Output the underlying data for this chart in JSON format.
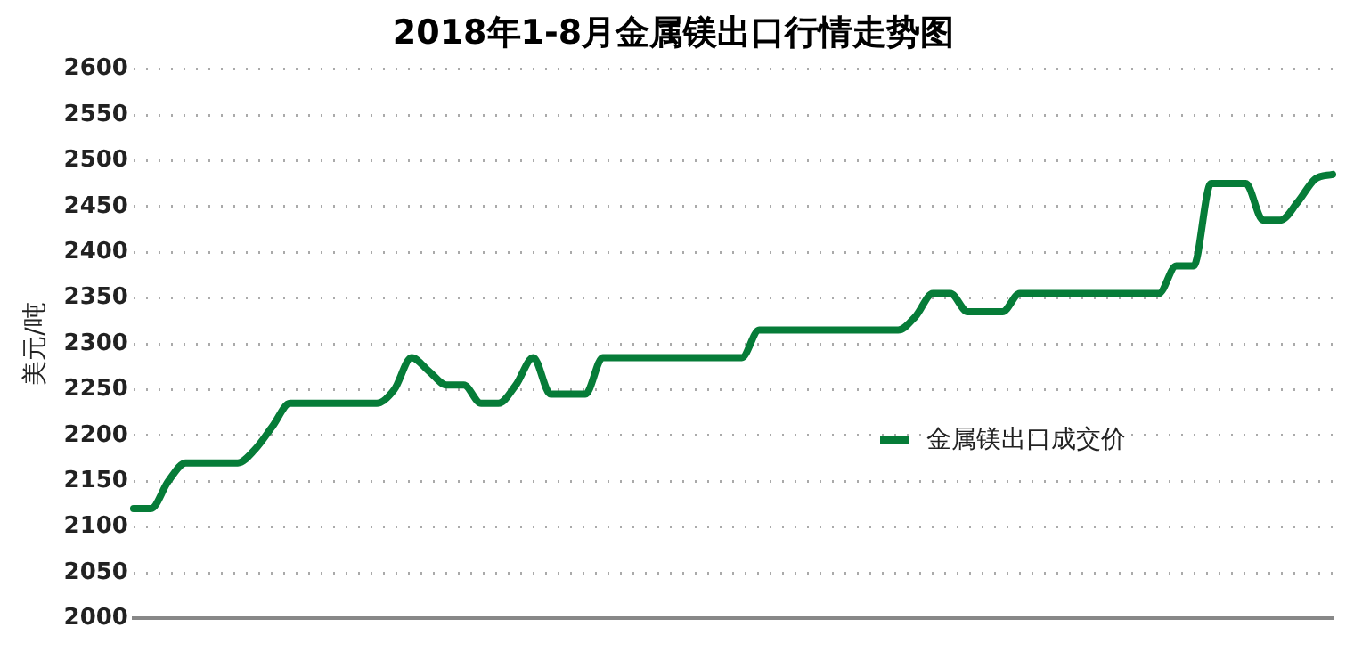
{
  "chart_data": {
    "type": "line",
    "title": "2018年1-8月金属镁出口行情走势图",
    "ylabel": "美元/吨",
    "categories": [
      null,
      null,
      null,
      null,
      null,
      null,
      null,
      null,
      null,
      null,
      null,
      null,
      null,
      null,
      null,
      null,
      null,
      null,
      null,
      null,
      null,
      null,
      null,
      null,
      null,
      null,
      null,
      null,
      null,
      null,
      null,
      null,
      null,
      null,
      null,
      null,
      null,
      null,
      null,
      null,
      null,
      null,
      null,
      null,
      null,
      null,
      null,
      null,
      null,
      null,
      null,
      null,
      null,
      null,
      null,
      null,
      null,
      null,
      null,
      null,
      null,
      null,
      null,
      null,
      null,
      null,
      null,
      null,
      null,
      null
    ],
    "series": [
      {
        "name": "金属镁出口成交价",
        "color": "#067c38",
        "values": [
          2120,
          2120,
          2150,
          2170,
          2170,
          2170,
          2170,
          2185,
          2210,
          2235,
          2235,
          2235,
          2235,
          2235,
          2235,
          2250,
          2285,
          2270,
          2255,
          2255,
          2235,
          2235,
          2255,
          2285,
          2245,
          2245,
          2245,
          2285,
          2285,
          2285,
          2285,
          2285,
          2285,
          2285,
          2285,
          2285,
          2315,
          2315,
          2315,
          2315,
          2315,
          2315,
          2315,
          2315,
          2315,
          2330,
          2355,
          2355,
          2335,
          2335,
          2335,
          2355,
          2355,
          2355,
          2355,
          2355,
          2355,
          2355,
          2355,
          2355,
          2385,
          2385,
          2475,
          2475,
          2475,
          2435,
          2435,
          2455,
          2480,
          2485
        ]
      }
    ],
    "ylim": [
      2000,
      2600
    ],
    "yticks": [
      2000,
      2050,
      2100,
      2150,
      2200,
      2250,
      2300,
      2350,
      2400,
      2450,
      2500,
      2550,
      2600
    ],
    "grid": "y",
    "legend": "right",
    "tick_labels": "y",
    "marker": "none",
    "line_style": "solid"
  }
}
